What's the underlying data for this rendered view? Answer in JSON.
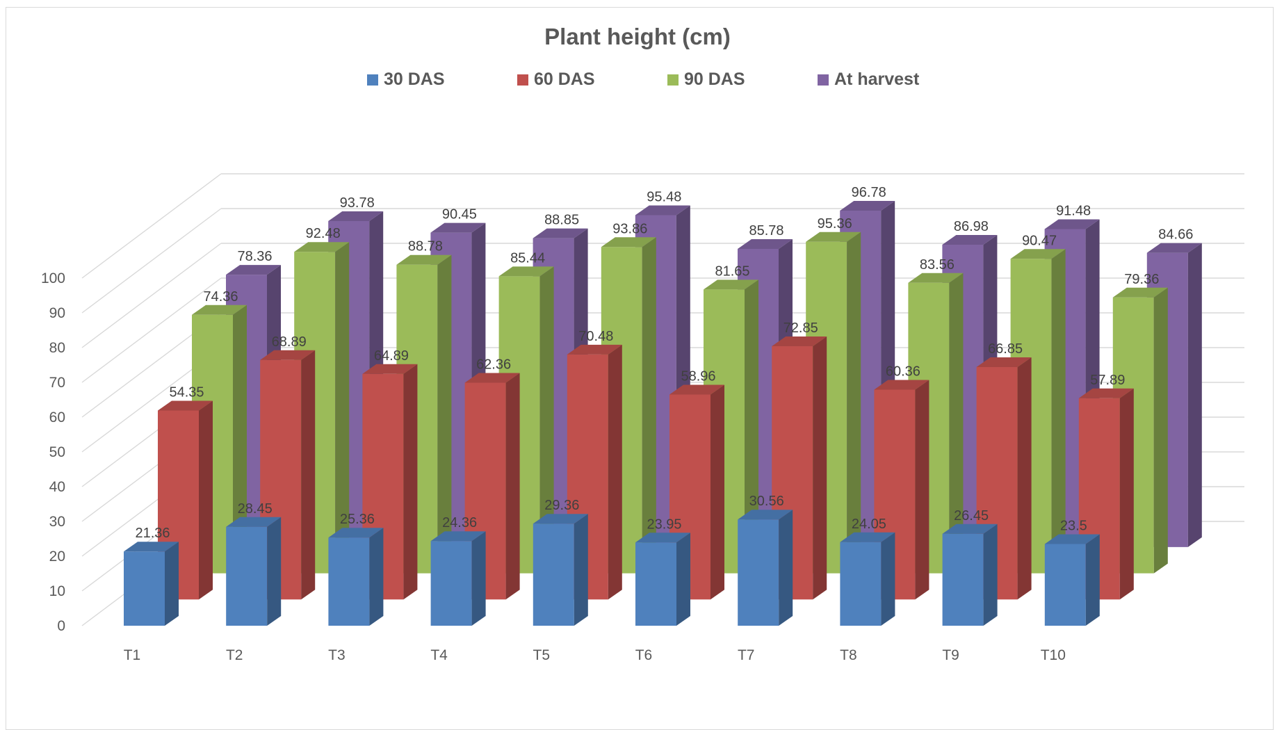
{
  "chart_data": {
    "type": "bar",
    "title": "Plant height (cm)",
    "categories": [
      "T1",
      "T2",
      "T3",
      "T4",
      "T5",
      "T6",
      "T7",
      "T8",
      "T9",
      "T10"
    ],
    "series": [
      {
        "name": "30 DAS",
        "color": "#4F81BD",
        "values": [
          21.36,
          28.45,
          25.36,
          24.36,
          29.36,
          23.95,
          30.56,
          24.05,
          26.45,
          23.5
        ]
      },
      {
        "name": "60 DAS",
        "color": "#C0504D",
        "values": [
          54.35,
          68.89,
          64.89,
          62.36,
          70.48,
          58.96,
          72.85,
          60.36,
          66.85,
          57.89
        ]
      },
      {
        "name": "90 DAS",
        "color": "#9BBB59",
        "values": [
          74.36,
          92.48,
          88.78,
          85.44,
          93.86,
          81.65,
          95.36,
          83.56,
          90.47,
          79.36
        ]
      },
      {
        "name": "At harvest",
        "color": "#8064A2",
        "values": [
          78.36,
          93.78,
          90.45,
          88.85,
          95.48,
          85.78,
          96.78,
          86.98,
          91.48,
          84.66
        ]
      }
    ],
    "ylim": [
      0,
      100
    ],
    "yticks": [
      "0",
      "10",
      "20",
      "30",
      "40",
      "50",
      "60",
      "70",
      "80",
      "90",
      "100"
    ],
    "grid": true,
    "legend_position": "top",
    "style": "3d-clustered-column"
  }
}
